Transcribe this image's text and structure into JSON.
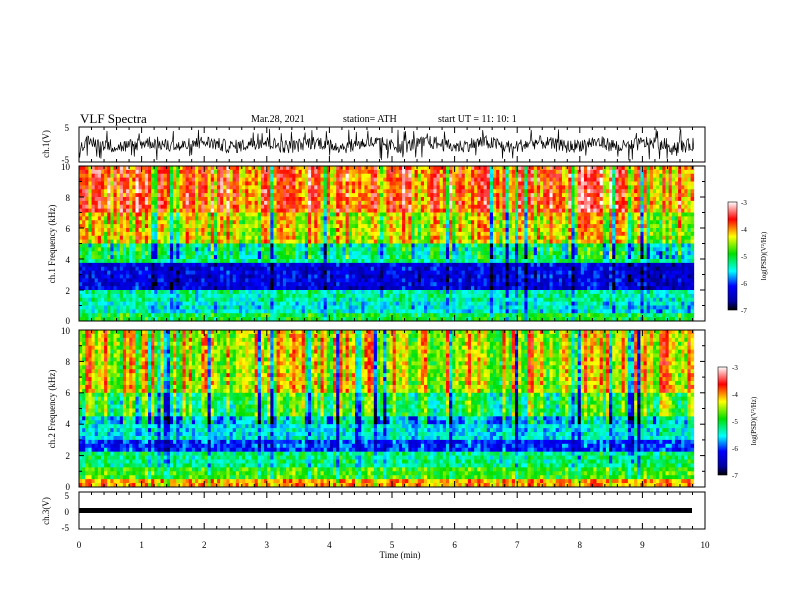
{
  "header": {
    "title": "VLF Spectra",
    "date": "Mar.28, 2021",
    "station": "station= ATH",
    "start": "start  UT =   11: 10: 1"
  },
  "chart_data": [
    {
      "type": "line",
      "panel": "ch1-waveform",
      "ylabel": "ch.1(V)",
      "ylim": [
        -5,
        5
      ],
      "yticks": [
        "5",
        "-5"
      ],
      "xlim": [
        0,
        10
      ],
      "series": [
        {
          "description_note": "",
          "values_mean": 0,
          "values_amplitude": 3
        }
      ]
    },
    {
      "type": "heatmap",
      "panel": "ch1-spectrogram",
      "ylabel": "ch.1 Frequency (kHz)",
      "ylim": [
        0,
        10
      ],
      "yticks": [
        "0",
        "2",
        "4",
        "6",
        "8",
        "10"
      ],
      "xlim": [
        0,
        9.82
      ],
      "colorbar": {
        "label": "log(PSD)(V²/Hz)",
        "range": [
          -7,
          -3
        ],
        "ticks": [
          "-3",
          "-4",
          "-5",
          "-6",
          "-7"
        ]
      },
      "bands": [
        {
          "f": [
            0,
            0.6
          ],
          "level": -5.0
        },
        {
          "f": [
            0.6,
            1.2
          ],
          "level": -5.5
        },
        {
          "f": [
            1.2,
            2.0
          ],
          "level": -5.3
        },
        {
          "f": [
            2.0,
            3.8
          ],
          "level": -6.3
        },
        {
          "f": [
            3.8,
            5.0
          ],
          "level": -5.2
        },
        {
          "f": [
            5.0,
            7.0
          ],
          "level": -4.3
        },
        {
          "f": [
            7.0,
            10.0
          ],
          "level": -3.8
        }
      ]
    },
    {
      "type": "heatmap",
      "panel": "ch2-spectrogram",
      "ylabel": "ch.2 Frequency (kHz)",
      "ylim": [
        0,
        10
      ],
      "yticks": [
        "0",
        "2",
        "4",
        "6",
        "8",
        "10"
      ],
      "xlim": [
        0,
        9.82
      ],
      "colorbar": {
        "label": "log(PSD)(V²/Hz)",
        "range": [
          -7,
          -3
        ],
        "ticks": [
          "-3",
          "-4",
          "-5",
          "-6",
          "-7"
        ]
      },
      "bands": [
        {
          "f": [
            0,
            0.5
          ],
          "level": -4.0
        },
        {
          "f": [
            0.5,
            1.2
          ],
          "level": -4.8
        },
        {
          "f": [
            1.2,
            2.2
          ],
          "level": -5.2
        },
        {
          "f": [
            2.2,
            3.0
          ],
          "level": -6.0
        },
        {
          "f": [
            3.0,
            4.4
          ],
          "level": -5.5
        },
        {
          "f": [
            4.4,
            6.0
          ],
          "level": -4.9
        },
        {
          "f": [
            6.0,
            10.0
          ],
          "level": -4.3
        }
      ]
    },
    {
      "type": "line",
      "panel": "ch3-waveform",
      "ylabel": "ch.3(V)",
      "ylim": [
        -5,
        5
      ],
      "yticks": [
        "5",
        "0",
        "-5"
      ],
      "xlim": [
        0,
        10
      ],
      "series": [
        {
          "values_mean": 0.2
        }
      ]
    }
  ],
  "xaxis": {
    "label": "Time  (min)",
    "ticks": [
      "0",
      "1",
      "2",
      "3",
      "4",
      "5",
      "6",
      "7",
      "8",
      "9",
      "10"
    ]
  },
  "colors": {
    "frame": "#000000",
    "trace": "#000000"
  }
}
